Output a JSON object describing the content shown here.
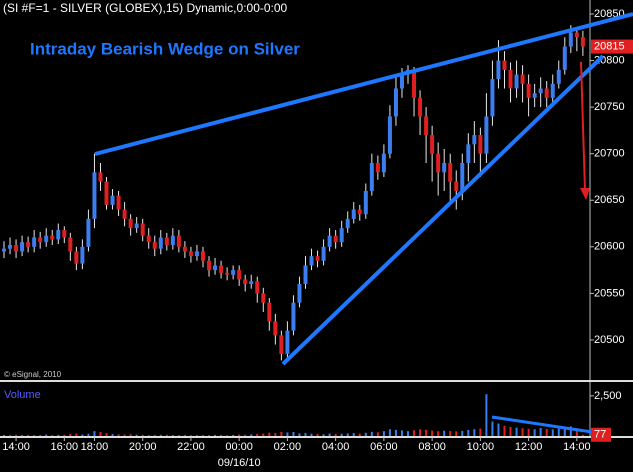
{
  "chart_data": {
    "type": "candlestick",
    "title": "(SI #F=1 - SILVER (GLOBEX),15) Dynamic,0:00-0:00",
    "annotation": "Intraday Bearish Wedge on Silver",
    "credit": "© eSignal, 2010",
    "date_label": "09/16/10",
    "up_color": "#3c7df0",
    "down_color": "#e02020",
    "categories": [
      null,
      null,
      "14:00",
      null,
      null,
      null,
      null,
      null,
      null,
      null,
      "16:00",
      null,
      null,
      null,
      null,
      "18:00",
      null,
      null,
      null,
      null,
      null,
      null,
      null,
      "20:00",
      null,
      null,
      null,
      null,
      null,
      null,
      null,
      "22:00",
      null,
      null,
      null,
      null,
      null,
      null,
      null,
      "00:00",
      null,
      null,
      null,
      null,
      null,
      null,
      null,
      "02:00",
      null,
      null,
      null,
      null,
      null,
      null,
      null,
      "04:00",
      null,
      null,
      null,
      null,
      null,
      null,
      null,
      "06:00",
      null,
      null,
      null,
      null,
      null,
      null,
      null,
      "08:00",
      null,
      null,
      null,
      null,
      null,
      null,
      null,
      "10:00",
      null,
      null,
      null,
      null,
      null,
      null,
      null,
      "12:00",
      null,
      null,
      null,
      null,
      null,
      null,
      null,
      "14:00",
      null
    ],
    "open": [
      20595,
      20598,
      20602,
      20595,
      20605,
      20600,
      20610,
      20605,
      20612,
      20608,
      20618,
      20610,
      20595,
      20582,
      20600,
      20630,
      20680,
      20670,
      20645,
      20655,
      20640,
      20630,
      20620,
      20625,
      20612,
      20605,
      20598,
      20610,
      20602,
      20612,
      20600,
      20595,
      20590,
      20595,
      20585,
      20575,
      20580,
      20572,
      20570,
      20575,
      20565,
      20560,
      20563,
      20550,
      20540,
      20520,
      20505,
      20485,
      20510,
      20540,
      20560,
      20580,
      20590,
      20585,
      20600,
      20612,
      20605,
      20620,
      20630,
      20640,
      20635,
      20660,
      20690,
      20680,
      20700,
      20740,
      20770,
      20785,
      20790,
      20760,
      20740,
      20720,
      20700,
      20680,
      20690,
      20670,
      20660,
      20690,
      20710,
      20720,
      20700,
      20740,
      20780,
      20800,
      20790,
      20770,
      20785,
      20775,
      20760,
      20765,
      20770,
      20760,
      20775,
      20790,
      20815,
      20830,
      20825
    ],
    "high": [
      20606,
      20610,
      20608,
      20612,
      20611,
      20618,
      20616,
      20620,
      20618,
      20625,
      20622,
      20615,
      20600,
      20608,
      20640,
      20700,
      20690,
      20675,
      20662,
      20660,
      20648,
      20635,
      20632,
      20630,
      20620,
      20612,
      20618,
      20615,
      20620,
      20618,
      20606,
      20600,
      20602,
      20600,
      20590,
      20588,
      20585,
      20578,
      20580,
      20580,
      20570,
      20570,
      20568,
      20556,
      20545,
      20528,
      20510,
      20520,
      20548,
      20568,
      20590,
      20598,
      20596,
      20608,
      20620,
      20618,
      20628,
      20638,
      20648,
      20645,
      20668,
      20700,
      20698,
      20710,
      20752,
      20782,
      20792,
      20795,
      20793,
      20768,
      20750,
      20730,
      20712,
      20705,
      20700,
      20682,
      20700,
      20722,
      20735,
      20728,
      20765,
      20800,
      20822,
      20810,
      20798,
      20800,
      20795,
      20785,
      20775,
      20782,
      20778,
      20785,
      20800,
      20825,
      20838,
      20836,
      20832
    ],
    "low": [
      20588,
      20592,
      20588,
      20590,
      20594,
      20594,
      20598,
      20600,
      20602,
      20603,
      20604,
      20585,
      20575,
      20576,
      20595,
      20620,
      20660,
      20640,
      20640,
      20633,
      20622,
      20612,
      20615,
      20606,
      20598,
      20590,
      20592,
      20596,
      20597,
      20594,
      20588,
      20583,
      20585,
      20578,
      20568,
      20570,
      20566,
      20564,
      20565,
      20558,
      20552,
      20555,
      20540,
      20530,
      20510,
      20495,
      20478,
      20480,
      20505,
      20535,
      20555,
      20575,
      20578,
      20580,
      20595,
      20598,
      20600,
      20615,
      20625,
      20628,
      20630,
      20655,
      20672,
      20675,
      20695,
      20730,
      20760,
      20775,
      20740,
      20720,
      20690,
      20670,
      20655,
      20660,
      20645,
      20640,
      20650,
      20670,
      20690,
      20675,
      20690,
      20730,
      20770,
      20770,
      20755,
      20760,
      20755,
      20740,
      20750,
      20750,
      20750,
      20755,
      20770,
      20785,
      20808,
      20810,
      20805
    ],
    "close": [
      20598,
      20602,
      20595,
      20605,
      20600,
      20610,
      20605,
      20612,
      20608,
      20618,
      20610,
      20595,
      20582,
      20600,
      20630,
      20680,
      20670,
      20645,
      20655,
      20640,
      20630,
      20620,
      20625,
      20612,
      20605,
      20598,
      20610,
      20602,
      20612,
      20600,
      20595,
      20590,
      20595,
      20585,
      20575,
      20580,
      20572,
      20570,
      20575,
      20565,
      20560,
      20563,
      20550,
      20540,
      20520,
      20505,
      20485,
      20510,
      20540,
      20560,
      20580,
      20590,
      20585,
      20600,
      20612,
      20605,
      20620,
      20630,
      20640,
      20635,
      20660,
      20690,
      20680,
      20700,
      20740,
      20770,
      20785,
      20790,
      20760,
      20740,
      20720,
      20700,
      20680,
      20690,
      20670,
      20660,
      20690,
      20710,
      20720,
      20700,
      20740,
      20780,
      20800,
      20790,
      20770,
      20785,
      20775,
      20760,
      20765,
      20770,
      20760,
      20775,
      20790,
      20815,
      20830,
      20825,
      20815
    ],
    "ylim": [
      20457,
      20865
    ],
    "yticks": [
      20500,
      20550,
      20600,
      20650,
      20700,
      20750,
      20800,
      20850
    ],
    "volume": {
      "title": "Volume",
      "values": [
        60,
        40,
        80,
        50,
        70,
        45,
        60,
        90,
        55,
        70,
        80,
        120,
        150,
        90,
        140,
        300,
        250,
        180,
        120,
        100,
        90,
        110,
        80,
        70,
        60,
        75,
        65,
        80,
        55,
        60,
        70,
        50,
        45,
        60,
        55,
        65,
        70,
        50,
        60,
        90,
        80,
        100,
        130,
        150,
        200,
        180,
        260,
        220,
        250,
        160,
        180,
        140,
        120,
        110,
        150,
        130,
        140,
        160,
        180,
        150,
        200,
        260,
        230,
        300,
        420,
        380,
        350,
        300,
        360,
        420,
        380,
        340,
        300,
        330,
        310,
        290,
        320,
        380,
        420,
        460,
        2600,
        900,
        780,
        640,
        560,
        520,
        480,
        450,
        420,
        500,
        440,
        410,
        460,
        520,
        600,
        480,
        77
      ],
      "ylim": [
        0,
        3300
      ],
      "yticks": [
        {
          "value": 2500,
          "label": "2,500"
        }
      ]
    }
  }
}
